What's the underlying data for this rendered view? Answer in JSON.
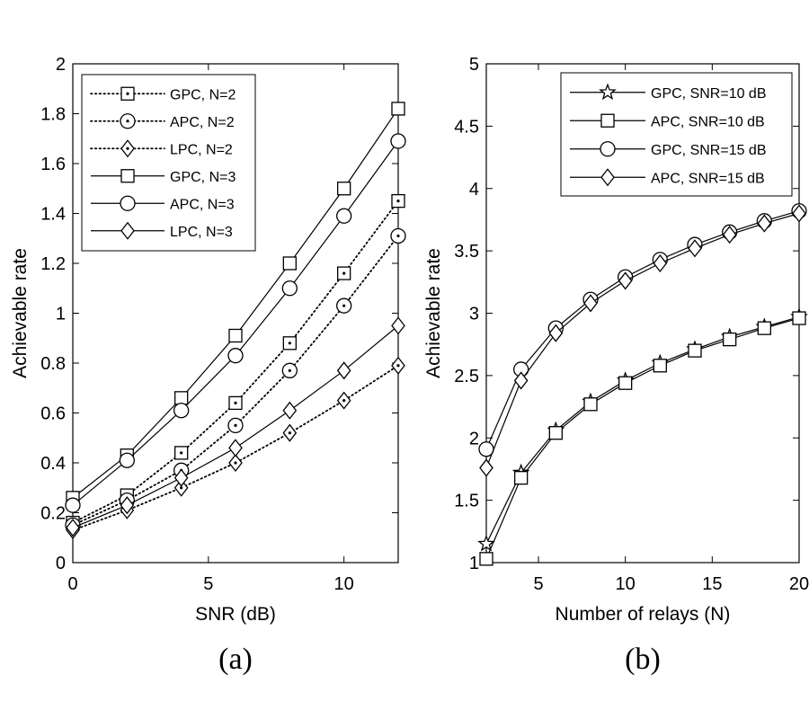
{
  "chart_data": [
    {
      "type": "line",
      "caption": "(a)",
      "xlabel": "SNR (dB)",
      "ylabel": "Achievable rate",
      "xlim": [
        0,
        12
      ],
      "ylim": [
        0,
        2
      ],
      "xticks": [
        0,
        5,
        10
      ],
      "xtick_labels": [
        "0",
        "5",
        "10"
      ],
      "yticks": [
        0,
        0.2,
        0.4,
        0.6,
        0.8,
        1,
        1.2,
        1.4,
        1.6,
        1.8,
        2
      ],
      "ytick_labels": [
        "0",
        "0.2",
        "0.4",
        "0.6",
        "0.8",
        "1",
        "1.2",
        "1.4",
        "1.6",
        "1.8",
        "2"
      ],
      "grid": false,
      "legend_position": "top-left",
      "x": [
        0,
        2,
        4,
        6,
        8,
        10,
        12
      ],
      "series": [
        {
          "name": "GPC, N=2",
          "style": "dotted",
          "marker": "square-dot",
          "values": [
            0.16,
            0.27,
            0.44,
            0.64,
            0.88,
            1.16,
            1.45
          ]
        },
        {
          "name": "APC, N=2",
          "style": "dotted",
          "marker": "circle-dot",
          "values": [
            0.15,
            0.25,
            0.37,
            0.55,
            0.77,
            1.03,
            1.31
          ]
        },
        {
          "name": "LPC, N=2",
          "style": "dotted",
          "marker": "diamond-dot",
          "values": [
            0.13,
            0.21,
            0.3,
            0.4,
            0.52,
            0.65,
            0.79
          ]
        },
        {
          "name": "GPC, N=3",
          "style": "solid",
          "marker": "square",
          "values": [
            0.26,
            0.43,
            0.66,
            0.91,
            1.2,
            1.5,
            1.82
          ]
        },
        {
          "name": "APC, N=3",
          "style": "solid",
          "marker": "circle",
          "values": [
            0.23,
            0.41,
            0.61,
            0.83,
            1.1,
            1.39,
            1.69
          ]
        },
        {
          "name": "LPC, N=3",
          "style": "solid",
          "marker": "diamond",
          "values": [
            0.14,
            0.23,
            0.34,
            0.46,
            0.61,
            0.77,
            0.95
          ]
        }
      ]
    },
    {
      "type": "line",
      "caption": "(b)",
      "xlabel": "Number of relays (N)",
      "ylabel": "Achievable rate",
      "xlim": [
        2,
        20
      ],
      "ylim": [
        1,
        5
      ],
      "xticks": [
        5,
        10,
        15,
        20
      ],
      "xtick_labels": [
        "5",
        "10",
        "15",
        "20"
      ],
      "yticks": [
        1,
        1.5,
        2,
        2.5,
        3,
        3.5,
        4,
        4.5,
        5
      ],
      "ytick_labels": [
        "1",
        "1.5",
        "2",
        "2.5",
        "3",
        "3.5",
        "4",
        "4.5",
        "5"
      ],
      "grid": false,
      "legend_position": "top-right",
      "x": [
        2,
        4,
        6,
        8,
        10,
        12,
        14,
        16,
        18,
        20
      ],
      "series": [
        {
          "name": "GPC, SNR=10 dB",
          "style": "solid",
          "marker": "star",
          "values": [
            1.15,
            1.72,
            2.06,
            2.29,
            2.46,
            2.6,
            2.71,
            2.81,
            2.89,
            2.97
          ]
        },
        {
          "name": "APC, SNR=10 dB",
          "style": "solid",
          "marker": "square",
          "values": [
            1.03,
            1.68,
            2.04,
            2.27,
            2.44,
            2.58,
            2.7,
            2.79,
            2.88,
            2.96
          ]
        },
        {
          "name": "GPC, SNR=15 dB",
          "style": "solid",
          "marker": "circle",
          "values": [
            1.91,
            2.55,
            2.88,
            3.11,
            3.29,
            3.43,
            3.55,
            3.65,
            3.74,
            3.82
          ]
        },
        {
          "name": "APC, SNR=15 dB",
          "style": "solid",
          "marker": "diamond",
          "values": [
            1.76,
            2.46,
            2.84,
            3.08,
            3.26,
            3.4,
            3.52,
            3.63,
            3.72,
            3.8
          ]
        }
      ]
    }
  ]
}
